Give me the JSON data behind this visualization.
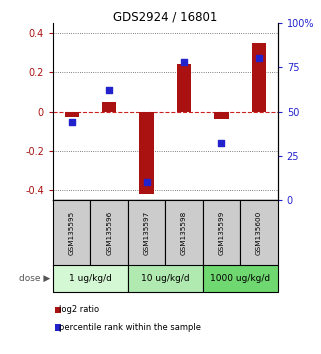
{
  "title": "GDS2924 / 16801",
  "samples": [
    "GSM135595",
    "GSM135596",
    "GSM135597",
    "GSM135598",
    "GSM135599",
    "GSM135600"
  ],
  "log2_ratio": [
    -0.03,
    0.05,
    -0.42,
    0.24,
    -0.04,
    0.35
  ],
  "percentile_rank": [
    44,
    62,
    10,
    78,
    32,
    80
  ],
  "dose_groups": [
    {
      "label": "1 ug/kg/d",
      "samples": [
        0,
        1
      ],
      "color": "#d4f7d4"
    },
    {
      "label": "10 ug/kg/d",
      "samples": [
        2,
        3
      ],
      "color": "#b0eab0"
    },
    {
      "label": "1000 ug/kg/d",
      "samples": [
        4,
        5
      ],
      "color": "#70d870"
    }
  ],
  "bar_color": "#aa1111",
  "dot_color": "#2222cc",
  "zero_line_color": "#cc2222",
  "grid_color": "#555555",
  "ylim_left": [
    -0.45,
    0.45
  ],
  "ylim_right": [
    0,
    100
  ],
  "yticks_left": [
    -0.4,
    -0.2,
    0.0,
    0.2,
    0.4
  ],
  "yticks_right": [
    0,
    25,
    50,
    75,
    100
  ],
  "legend_red": "log2 ratio",
  "legend_blue": "percentile rank within the sample",
  "sample_box_color": "#cccccc",
  "dose_arrow_label": "dose"
}
